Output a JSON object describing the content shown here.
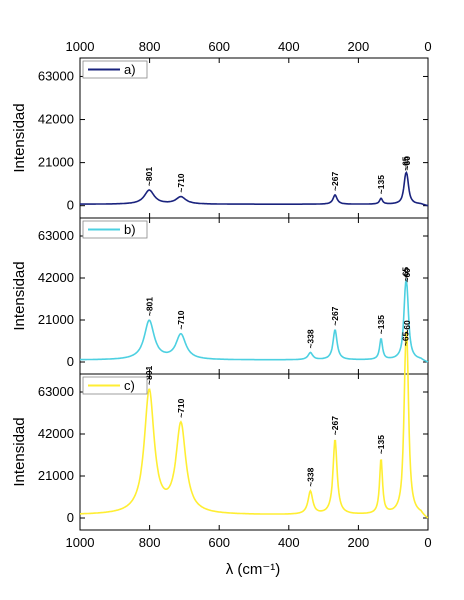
{
  "chart_data": {
    "type": "line",
    "x_reversed": true,
    "xlabel": "λ (cm⁻¹)",
    "ylabel": "Intensidad",
    "xlim": [
      1000,
      0
    ],
    "x_ticks": [
      1000,
      800,
      600,
      400,
      200,
      0
    ],
    "x_tick_labels": [
      "1000",
      "800",
      "600",
      "400",
      "200",
      "0"
    ],
    "ylim": [
      -6000,
      72000
    ],
    "y_ticks": [
      0,
      21000,
      42000,
      63000
    ],
    "y_tick_labels": [
      "0",
      "21000",
      "42000",
      "63000"
    ],
    "grid": false,
    "legend_position": "top-left",
    "panels": [
      {
        "name": "a)",
        "color": "#1a237e",
        "baseline": 700,
        "peaks": [
          {
            "x": 801,
            "y": 7500,
            "label": "~801"
          },
          {
            "x": 710,
            "y": 4200,
            "label": "~710"
          },
          {
            "x": 267,
            "y": 5200,
            "label": "~267"
          },
          {
            "x": 135,
            "y": 3500,
            "label": "~135"
          },
          {
            "x": 65,
            "y": 9500,
            "label": "~65"
          },
          {
            "x": 60,
            "y": 10000,
            "label": "~60"
          }
        ]
      },
      {
        "name": "b)",
        "color": "#4dd0e1",
        "baseline": 1000,
        "peaks": [
          {
            "x": 801,
            "y": 20500,
            "label": "~801"
          },
          {
            "x": 710,
            "y": 13500,
            "label": "~710"
          },
          {
            "x": 338,
            "y": 4500,
            "label": "~338"
          },
          {
            "x": 267,
            "y": 16000,
            "label": "~267"
          },
          {
            "x": 135,
            "y": 11500,
            "label": "~135"
          },
          {
            "x": 65,
            "y": 25000,
            "label": "~65"
          },
          {
            "x": 60,
            "y": 23500,
            "label": "~60"
          }
        ]
      },
      {
        "name": "c)",
        "color": "#ffee33",
        "baseline": 1500,
        "peaks": [
          {
            "x": 801,
            "y": 63000,
            "label": "~801"
          },
          {
            "x": 710,
            "y": 46000,
            "label": "~710"
          },
          {
            "x": 338,
            "y": 13000,
            "label": "~338"
          },
          {
            "x": 267,
            "y": 39000,
            "label": "~267"
          },
          {
            "x": 135,
            "y": 29000,
            "label": "~135"
          },
          {
            "x": 65,
            "y": 48000,
            "label": "~65"
          },
          {
            "x": 60,
            "y": 62000,
            "label": "~60"
          }
        ]
      }
    ]
  }
}
